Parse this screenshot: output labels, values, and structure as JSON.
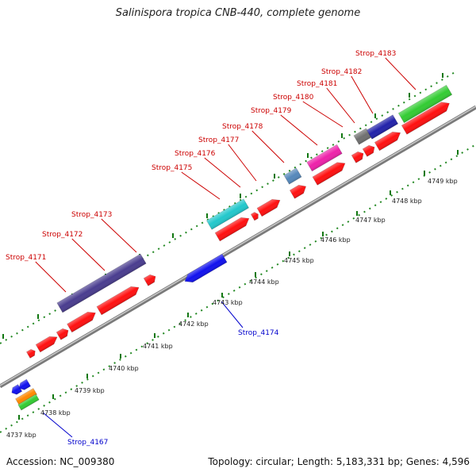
{
  "title": "Salinispora tropica CNB-440, complete genome",
  "footer": {
    "accession": "Accession: NC_009380",
    "summary": "Topology: circular; Length: 5,183,331 bp; Genes: 4,596"
  },
  "colors": {
    "forward_label": "#cc0000",
    "reverse_label": "#0000cc",
    "default_gene": "#ff0000",
    "backbone": "#888888",
    "ticks": "#118811"
  },
  "kbp_labels": [
    "4737 kbp",
    "4738 kbp",
    "4739 kbp",
    "4740 kbp",
    "4741 kbp",
    "4742 kbp",
    "4743 kbp",
    "4744 kbp",
    "4745 kbp",
    "4746 kbp",
    "4747 kbp",
    "4748 kbp",
    "4749 kbp"
  ],
  "forward_gene_labels": [
    "Strop_4171",
    "Strop_4172",
    "Strop_4173",
    "Strop_4175",
    "Strop_4176",
    "Strop_4177",
    "Strop_4178",
    "Strop_4179",
    "Strop_4180",
    "Strop_4181",
    "Strop_4182",
    "Strop_4183"
  ],
  "reverse_gene_labels": [
    "Strop_4167",
    "Strop_4174"
  ]
}
